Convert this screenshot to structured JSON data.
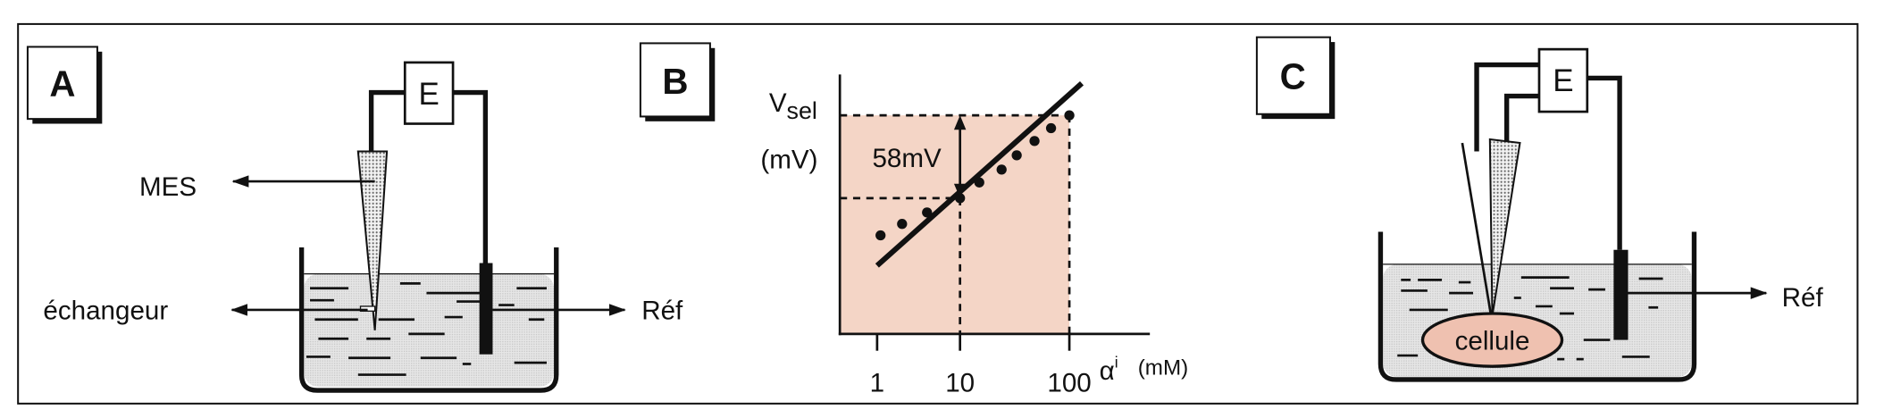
{
  "panel_a": {
    "label": "A",
    "meter_label": "E",
    "mes_label": "MES",
    "exchanger_label": "échangeur",
    "ref_label": "Réf"
  },
  "panel_b": {
    "label": "B",
    "y_label_main": "V",
    "y_label_sub": "sel",
    "y_unit": "(mV)",
    "delta_label": "58mV",
    "x_symbol": "α",
    "x_superscript": "i",
    "x_unit": "(mM)"
  },
  "panel_c": {
    "label": "C",
    "meter_label": "E",
    "cell_label": "cellule",
    "ref_label": "Réf"
  },
  "colors": {
    "shade": "#f4d5c6",
    "cell": "#efc1b0",
    "liquid": "#e3e3e3",
    "ink": "#111111"
  },
  "chart_data": {
    "type": "scatter",
    "title": "",
    "xlabel": "αi (mM)",
    "ylabel": "Vsel (mV)",
    "x_scale": "log",
    "x_ticks": [
      1,
      10,
      100
    ],
    "x_tick_labels": [
      "1",
      "10",
      "100"
    ],
    "annotation": "58mV",
    "points": [
      {
        "x": 1.1,
        "y": -26
      },
      {
        "x": 2,
        "y": -18
      },
      {
        "x": 4,
        "y": -10
      },
      {
        "x": 10,
        "y": 0
      },
      {
        "x": 15,
        "y": 11
      },
      {
        "x": 24,
        "y": 20
      },
      {
        "x": 33,
        "y": 30
      },
      {
        "x": 48,
        "y": 40
      },
      {
        "x": 68,
        "y": 49
      },
      {
        "x": 100,
        "y": 58
      }
    ],
    "fit_line": [
      {
        "x": 1,
        "y": -43
      },
      {
        "x": 130,
        "y": 72
      }
    ],
    "reference_levels": [
      {
        "x": 10,
        "y": 0
      },
      {
        "x": 100,
        "y": 58
      }
    ]
  }
}
